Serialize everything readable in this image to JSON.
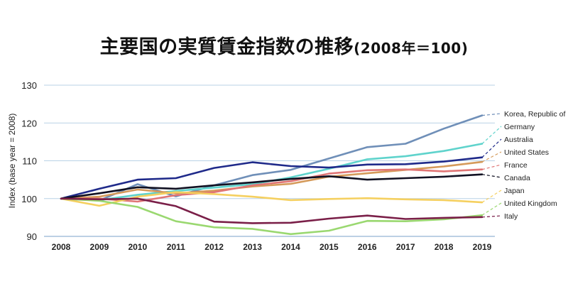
{
  "title": "主要国の実質賃金指数の推移",
  "title_suffix": "(2008年＝100)",
  "chart_data": {
    "type": "line",
    "title": "主要国の実質賃金指数の推移(2008年＝100)",
    "xlabel": "",
    "ylabel": "Index (base year = 2008)",
    "x": [
      "2008",
      "2009",
      "2010",
      "2011",
      "2012",
      "2013",
      "2014",
      "2015",
      "2016",
      "2017",
      "2018",
      "2019"
    ],
    "yticks": [
      "90",
      "100",
      "110",
      "120",
      "130"
    ],
    "ylim": [
      90,
      130
    ],
    "grid": true,
    "legend_position": "right, labels at line ends with dashed leaders",
    "series": [
      {
        "name": "Korea, Republic of",
        "color": "#6f8fb8",
        "values": [
          100,
          99.5,
          103.8,
          100.6,
          103.5,
          106.2,
          107.6,
          110.6,
          113.6,
          114.5,
          118.5,
          122.0
        ]
      },
      {
        "name": "Germany",
        "color": "#5fd3cc",
        "values": [
          100,
          99.6,
          101.0,
          102.0,
          102.9,
          103.8,
          105.6,
          107.9,
          110.4,
          111.2,
          112.6,
          114.5
        ]
      },
      {
        "name": "Australia",
        "color": "#1f2a8a",
        "values": [
          100,
          102.6,
          105.0,
          105.4,
          108.1,
          109.6,
          108.6,
          108.2,
          109.0,
          109.1,
          109.8,
          110.9
        ]
      },
      {
        "name": "United States",
        "color": "#d59a5a",
        "values": [
          100,
          100.5,
          102.4,
          101.4,
          102.1,
          103.2,
          103.9,
          105.8,
          106.7,
          107.6,
          108.5,
          109.7
        ]
      },
      {
        "name": "France",
        "color": "#e07575",
        "values": [
          100,
          100.0,
          99.2,
          100.9,
          101.7,
          103.5,
          104.6,
          106.6,
          107.5,
          107.7,
          107.2,
          107.7
        ]
      },
      {
        "name": "Canada",
        "color": "#111122",
        "values": [
          100,
          101.4,
          103.0,
          102.6,
          103.5,
          104.3,
          105.2,
          105.9,
          105.0,
          105.4,
          105.8,
          106.4
        ]
      },
      {
        "name": "Japan",
        "color": "#f5d060",
        "values": [
          100,
          98.1,
          100.5,
          101.7,
          101.2,
          100.5,
          99.6,
          99.9,
          100.1,
          99.8,
          99.6,
          99.0
        ]
      },
      {
        "name": "United Kingdom",
        "color": "#9ad870",
        "values": [
          100,
          99.4,
          97.8,
          94.0,
          92.4,
          92.0,
          90.6,
          91.5,
          94.1,
          94.0,
          94.5,
          95.6
        ]
      },
      {
        "name": "Italy",
        "color": "#7a1f48",
        "values": [
          100,
          99.8,
          100.0,
          98.0,
          93.9,
          93.5,
          93.6,
          94.7,
          95.5,
          94.6,
          94.9,
          95.1
        ]
      }
    ]
  }
}
